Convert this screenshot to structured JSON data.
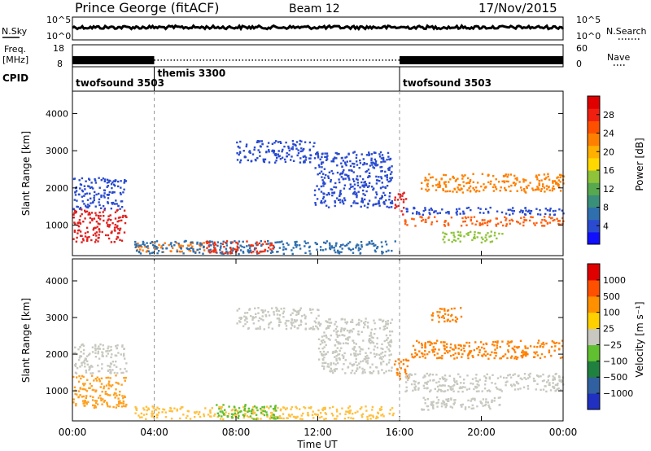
{
  "header": {
    "station": "Prince George (fitACF)",
    "beam": "Beam 12",
    "date": "17/Nov/2015"
  },
  "chart_data": [
    {
      "type": "line",
      "panel": "N.Sky / N.Search",
      "left_label": "N.Sky",
      "right_label": "N.Search",
      "left_ticks": [
        "10^5",
        "10^0"
      ],
      "right_ticks": [
        "10^5",
        "10^0"
      ],
      "series": [
        {
          "name": "N.Sky",
          "style": "solid",
          "level": 0.55
        },
        {
          "name": "N.Search",
          "style": "dotted"
        }
      ]
    },
    {
      "type": "line",
      "panel": "Freq / Nave",
      "left_label_lines": [
        "Freq.",
        "[MHz]"
      ],
      "right_label": "Nave",
      "left_ticks": [
        "18",
        "8"
      ],
      "right_ticks": [
        "60",
        "0"
      ],
      "segments": [
        {
          "start_hour": 0.0,
          "end_hour": 4.0,
          "freq_mhz": 11,
          "style": "solid"
        },
        {
          "start_hour": 4.0,
          "end_hour": 16.0,
          "freq_mhz": 11,
          "style": "dotted"
        },
        {
          "start_hour": 16.0,
          "end_hour": 24.0,
          "freq_mhz": 11,
          "style": "solid"
        }
      ]
    },
    {
      "type": "table",
      "panel": "CPID",
      "label": "CPID",
      "programs": [
        {
          "name": "twofsound 3503",
          "start_hour": 0.0
        },
        {
          "name": "themis 3300",
          "start_hour": 4.0
        },
        {
          "name": "twofsound 3503",
          "start_hour": 16.0
        }
      ]
    },
    {
      "type": "heatmap",
      "panel": "Power",
      "ylabel": "Slant Range [km]",
      "xlabel": "",
      "y_ticks": [
        1000,
        2000,
        3000,
        4000
      ],
      "ylim": [
        180,
        4600
      ],
      "xlim_hours": [
        0,
        24
      ],
      "colorbar": {
        "label": "Power [dB]",
        "ticks": [
          "4",
          "8",
          "12",
          "16",
          "20",
          "24",
          "28"
        ],
        "colors": [
          "#1010ff",
          "#2a4bd0",
          "#2f6fae",
          "#3a8f7a",
          "#58a850",
          "#8fc43a",
          "#ffd800",
          "#ffb000",
          "#ff8000",
          "#ff5000",
          "#f02010",
          "#e00000"
        ]
      },
      "regions": [
        {
          "t0": 0.0,
          "t1": 2.6,
          "r0": 560,
          "r1": 1450,
          "color": "#e02020"
        },
        {
          "t0": 0.0,
          "t1": 2.6,
          "r0": 1450,
          "r1": 2300,
          "color": "#2a4bd0"
        },
        {
          "t0": 3.0,
          "t1": 6.5,
          "r0": 300,
          "r1": 560,
          "color": "#ff7a10"
        },
        {
          "t0": 3.0,
          "t1": 15.8,
          "r0": 250,
          "r1": 600,
          "color": "#2f6fae"
        },
        {
          "t0": 6.5,
          "t1": 9.8,
          "r0": 250,
          "r1": 600,
          "color": "#f03010"
        },
        {
          "t0": 8.0,
          "t1": 11.8,
          "r0": 2700,
          "r1": 3300,
          "color": "#2a4bd0"
        },
        {
          "t0": 11.8,
          "t1": 15.6,
          "r0": 1500,
          "r1": 3000,
          "color": "#2a4bd0"
        },
        {
          "t0": 15.7,
          "t1": 16.3,
          "r0": 1300,
          "r1": 1900,
          "color": "#e02020"
        },
        {
          "t0": 16.2,
          "t1": 24.0,
          "r0": 1000,
          "r1": 1250,
          "color": "#ff6010"
        },
        {
          "t0": 16.2,
          "t1": 24.0,
          "r0": 1300,
          "r1": 1500,
          "color": "#2a4bd0"
        },
        {
          "t0": 17.0,
          "t1": 24.0,
          "r0": 1900,
          "r1": 2400,
          "color": "#ff8000"
        },
        {
          "t0": 18.0,
          "t1": 21.0,
          "r0": 550,
          "r1": 850,
          "color": "#8fc43a"
        }
      ]
    },
    {
      "type": "heatmap",
      "panel": "Velocity",
      "ylabel": "Slant Range [km]",
      "xlabel": "Time UT",
      "x_ticks": [
        "00:00",
        "04:00",
        "08:00",
        "12:00",
        "16:00",
        "20:00",
        "00:00"
      ],
      "y_ticks": [
        1000,
        2000,
        3000,
        4000
      ],
      "ylim": [
        180,
        4600
      ],
      "xlim_hours": [
        0,
        24
      ],
      "colorbar": {
        "label": "Velocity [m s⁻¹]",
        "ticks": [
          "1000",
          "500",
          "100",
          "25",
          "−25",
          "−100",
          "−500",
          "−1000"
        ],
        "colors": [
          "#2030c0",
          "#3060a0",
          "#208040",
          "#60c030",
          "#c8c8c0",
          "#ffd000",
          "#ff9000",
          "#ff5000",
          "#e00000"
        ]
      },
      "regions": [
        {
          "t0": 0.0,
          "t1": 2.6,
          "r0": 560,
          "r1": 1450,
          "color": "#ffa020"
        },
        {
          "t0": 0.0,
          "t1": 2.6,
          "r0": 1500,
          "r1": 2300,
          "color": "#c8c8c0"
        },
        {
          "t0": 3.0,
          "t1": 15.8,
          "r0": 250,
          "r1": 600,
          "color": "#ffc040"
        },
        {
          "t0": 7.0,
          "t1": 10.0,
          "r0": 250,
          "r1": 650,
          "color": "#60c030"
        },
        {
          "t0": 8.0,
          "t1": 12.0,
          "r0": 2700,
          "r1": 3300,
          "color": "#c8c8c0"
        },
        {
          "t0": 12.0,
          "t1": 15.6,
          "r0": 1500,
          "r1": 3000,
          "color": "#c8c8c0"
        },
        {
          "t0": 15.7,
          "t1": 16.4,
          "r0": 1300,
          "r1": 1900,
          "color": "#ff8000"
        },
        {
          "t0": 16.2,
          "t1": 24.0,
          "r0": 1000,
          "r1": 1500,
          "color": "#c8c8c0"
        },
        {
          "t0": 16.5,
          "t1": 24.0,
          "r0": 1900,
          "r1": 2400,
          "color": "#ff8000"
        },
        {
          "t0": 17.0,
          "t1": 21.0,
          "r0": 500,
          "r1": 850,
          "color": "#c8c8c0"
        },
        {
          "t0": 17.5,
          "t1": 19.0,
          "r0": 2900,
          "r1": 3300,
          "color": "#ff8000"
        }
      ]
    }
  ]
}
